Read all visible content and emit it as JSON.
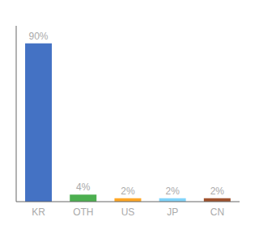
{
  "chart_data": {
    "type": "bar",
    "categories": [
      "KR",
      "OTH",
      "US",
      "JP",
      "CN"
    ],
    "values": [
      90,
      4,
      2,
      2,
      2
    ],
    "value_labels": [
      "90%",
      "4%",
      "2%",
      "2%",
      "2%"
    ],
    "data_labels": true,
    "colors": [
      "#4472C4",
      "#4CAF50",
      "#FFA726",
      "#81D4FA",
      "#A0522D"
    ],
    "ylim": [
      0,
      100
    ],
    "tick_labels": "x",
    "grid": false
  }
}
